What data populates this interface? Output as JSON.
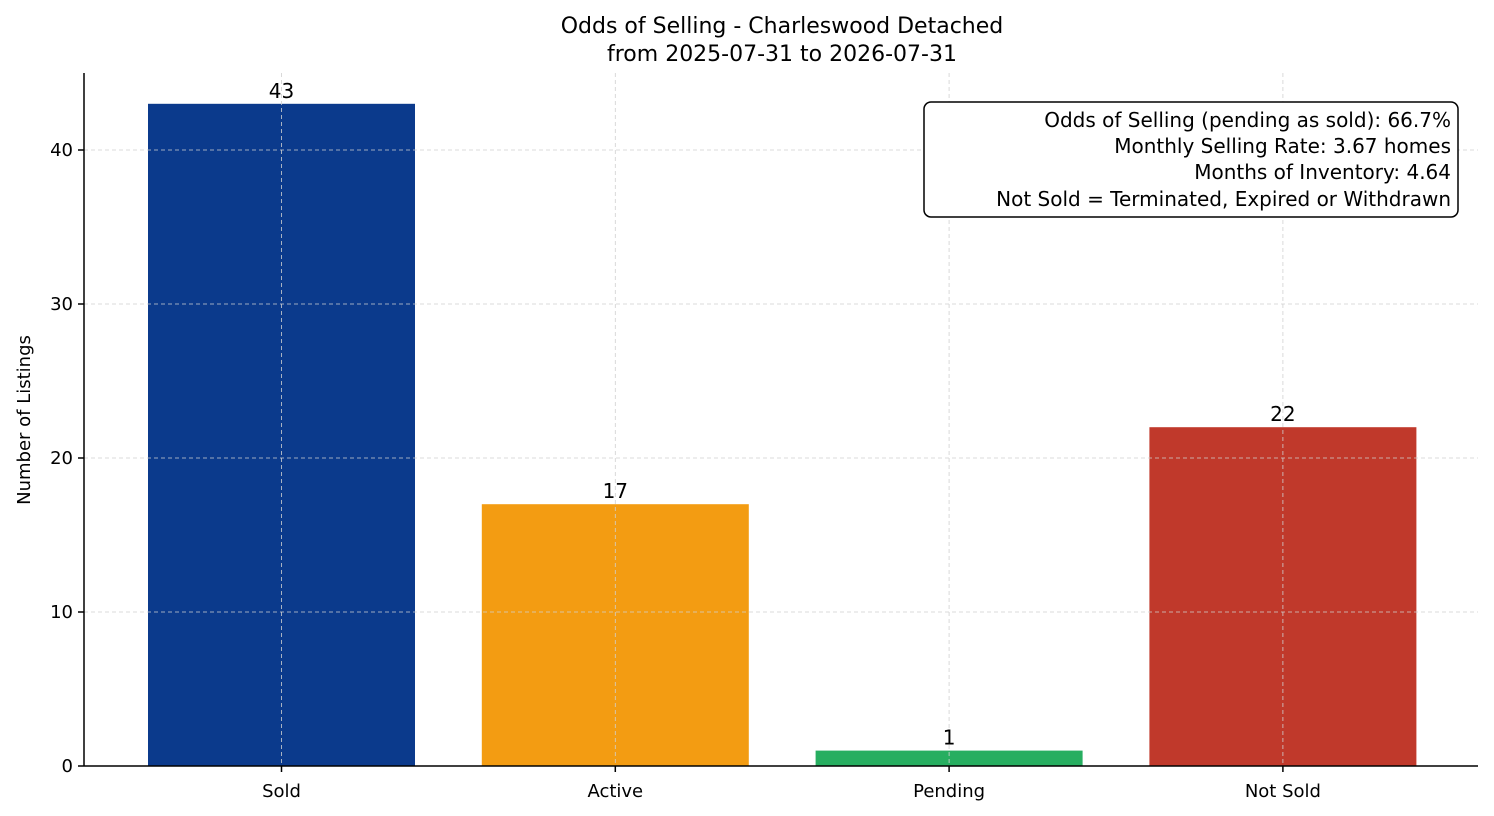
{
  "chart_data": {
    "type": "bar",
    "title": "Odds of Selling - Charleswood Detached",
    "subtitle": "from 2025-07-31 to 2026-07-31",
    "xlabel": "",
    "ylabel": "Number of Listings",
    "categories": [
      "Sold",
      "Active",
      "Pending",
      "Not Sold"
    ],
    "values": [
      43,
      17,
      1,
      22
    ],
    "colors": [
      "#0b3a8c",
      "#f39c12",
      "#27ae60",
      "#c0392b"
    ],
    "ylim": [
      0,
      45
    ],
    "yticks": [
      0,
      10,
      20,
      30,
      40
    ],
    "grid": true,
    "info_box": {
      "position": "top-right",
      "lines": [
        "Odds of Selling (pending as sold): 66.7%",
        "Monthly Selling Rate: 3.67 homes",
        "Months of Inventory: 4.64",
        "Not Sold = Terminated, Expired or Withdrawn"
      ]
    }
  }
}
